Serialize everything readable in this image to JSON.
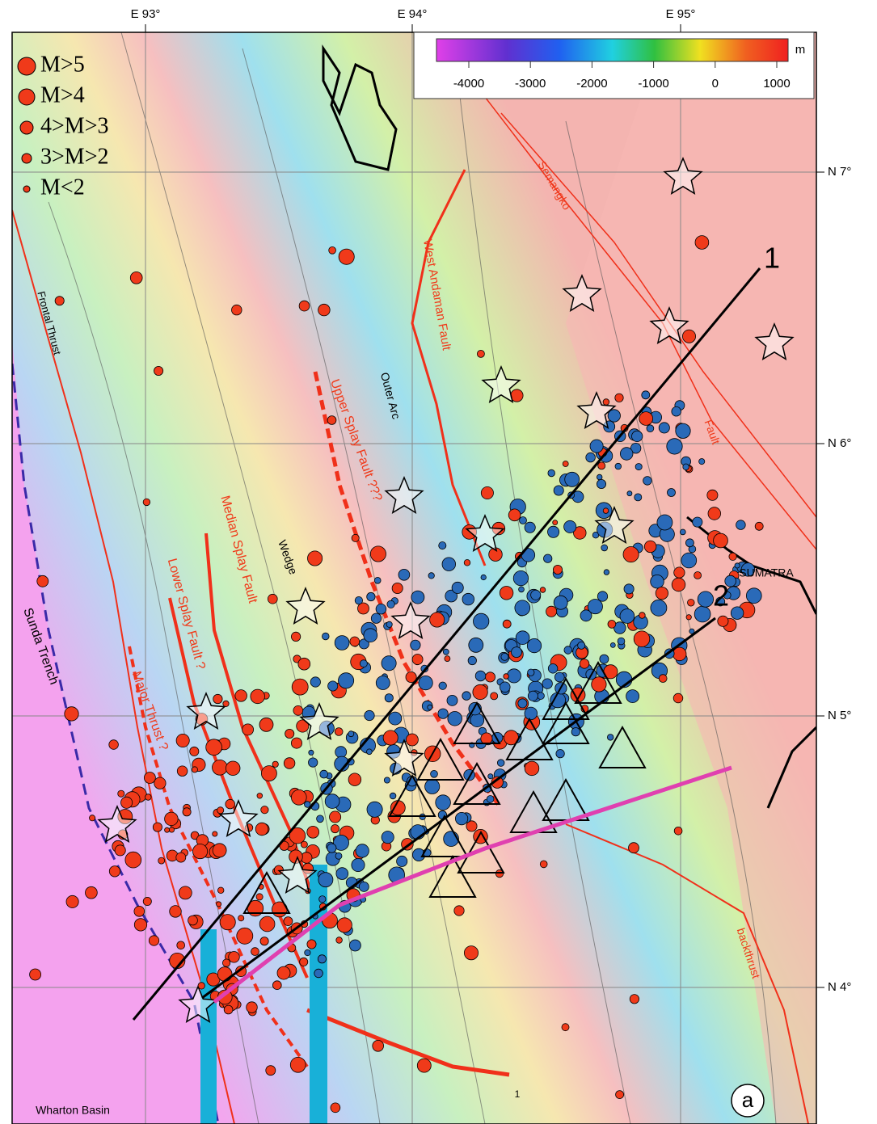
{
  "axes": {
    "longitude": [
      "E 93°",
      "E 94°",
      "E 95°"
    ],
    "latitude": [
      "N 7°",
      "N 6°",
      "N 5°",
      "N 4°"
    ]
  },
  "colorbar": {
    "ticks": [
      -4000,
      -3000,
      -2000,
      -1000,
      0,
      1000
    ],
    "unit": "m"
  },
  "legend": [
    "M>5",
    "M>4",
    "4>M>3",
    "3>M>2",
    "M<2"
  ],
  "labels": [
    "Frontal Thrust",
    "Sunda Trench",
    "Major Thrust ?",
    "Lower Splay Fault ?",
    "Median Splay Fault",
    "Wedge",
    "Upper Splay Fault ???",
    "Outer Arc",
    "West Andaman Fault",
    "Semangko",
    "Fault",
    "SUMATRA",
    "backthrust",
    "Wharton Basin",
    "1"
  ],
  "profiles": [
    "1",
    "2"
  ],
  "panel": "a"
}
